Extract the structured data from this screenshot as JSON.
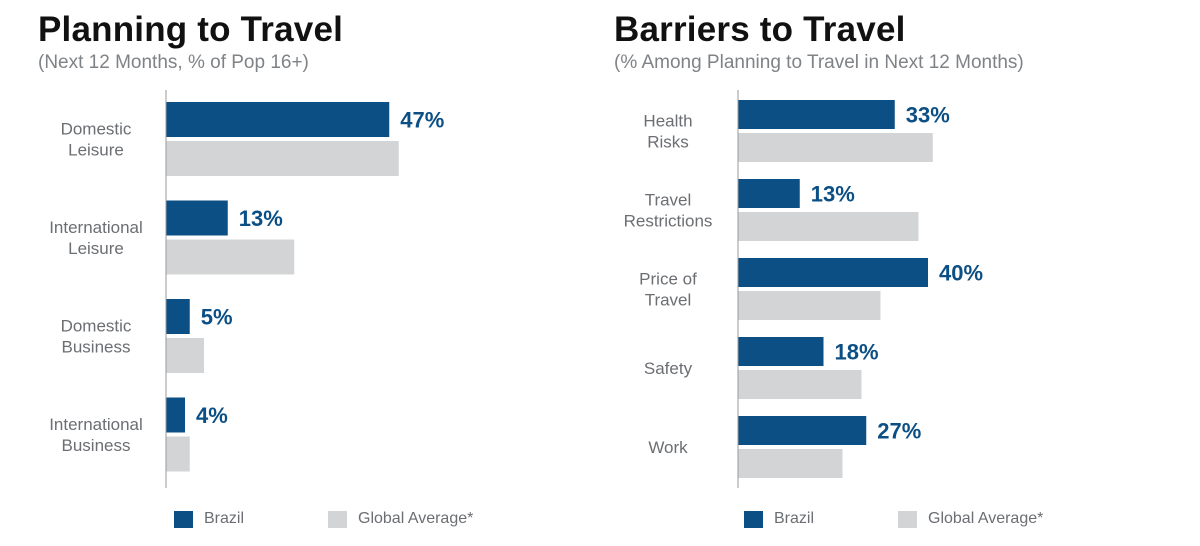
{
  "colors": {
    "brazil": "#0b4f85",
    "global": "#d3d4d6",
    "axis": "#9a9a9a"
  },
  "legend": {
    "brazil": "Brazil",
    "global": "Global Average*"
  },
  "chart_data": [
    {
      "type": "bar",
      "orientation": "horizontal",
      "title": "Planning to Travel",
      "subtitle": "(Next 12 Months, % of Pop 16+)",
      "categories": [
        [
          "Domestic",
          "Leisure"
        ],
        [
          "International",
          "Leisure"
        ],
        [
          "Domestic",
          "Business"
        ],
        [
          "International",
          "Business"
        ]
      ],
      "series": [
        {
          "name": "Brazil",
          "values": [
            47,
            13,
            5,
            4
          ],
          "labels": [
            "47%",
            "13%",
            "5%",
            "4%"
          ]
        },
        {
          "name": "Global Average*",
          "values": [
            49,
            27,
            8,
            5
          ]
        }
      ],
      "xlim": [
        0,
        55
      ],
      "grid": false,
      "legend_position": "bottom"
    },
    {
      "type": "bar",
      "orientation": "horizontal",
      "title": "Barriers to Travel",
      "subtitle": "(% Among Planning to Travel in Next 12 Months)",
      "categories": [
        [
          "Health",
          "Risks"
        ],
        [
          "Travel",
          "Restrictions"
        ],
        [
          "Price of",
          "Travel"
        ],
        [
          "Safety"
        ],
        [
          "Work"
        ]
      ],
      "series": [
        {
          "name": "Brazil",
          "values": [
            33,
            13,
            40,
            18,
            27
          ],
          "labels": [
            "33%",
            "13%",
            "40%",
            "18%",
            "27%"
          ]
        },
        {
          "name": "Global Average*",
          "values": [
            41,
            38,
            30,
            26,
            22
          ]
        }
      ],
      "xlim": [
        0,
        55
      ],
      "grid": false,
      "legend_position": "bottom"
    }
  ]
}
